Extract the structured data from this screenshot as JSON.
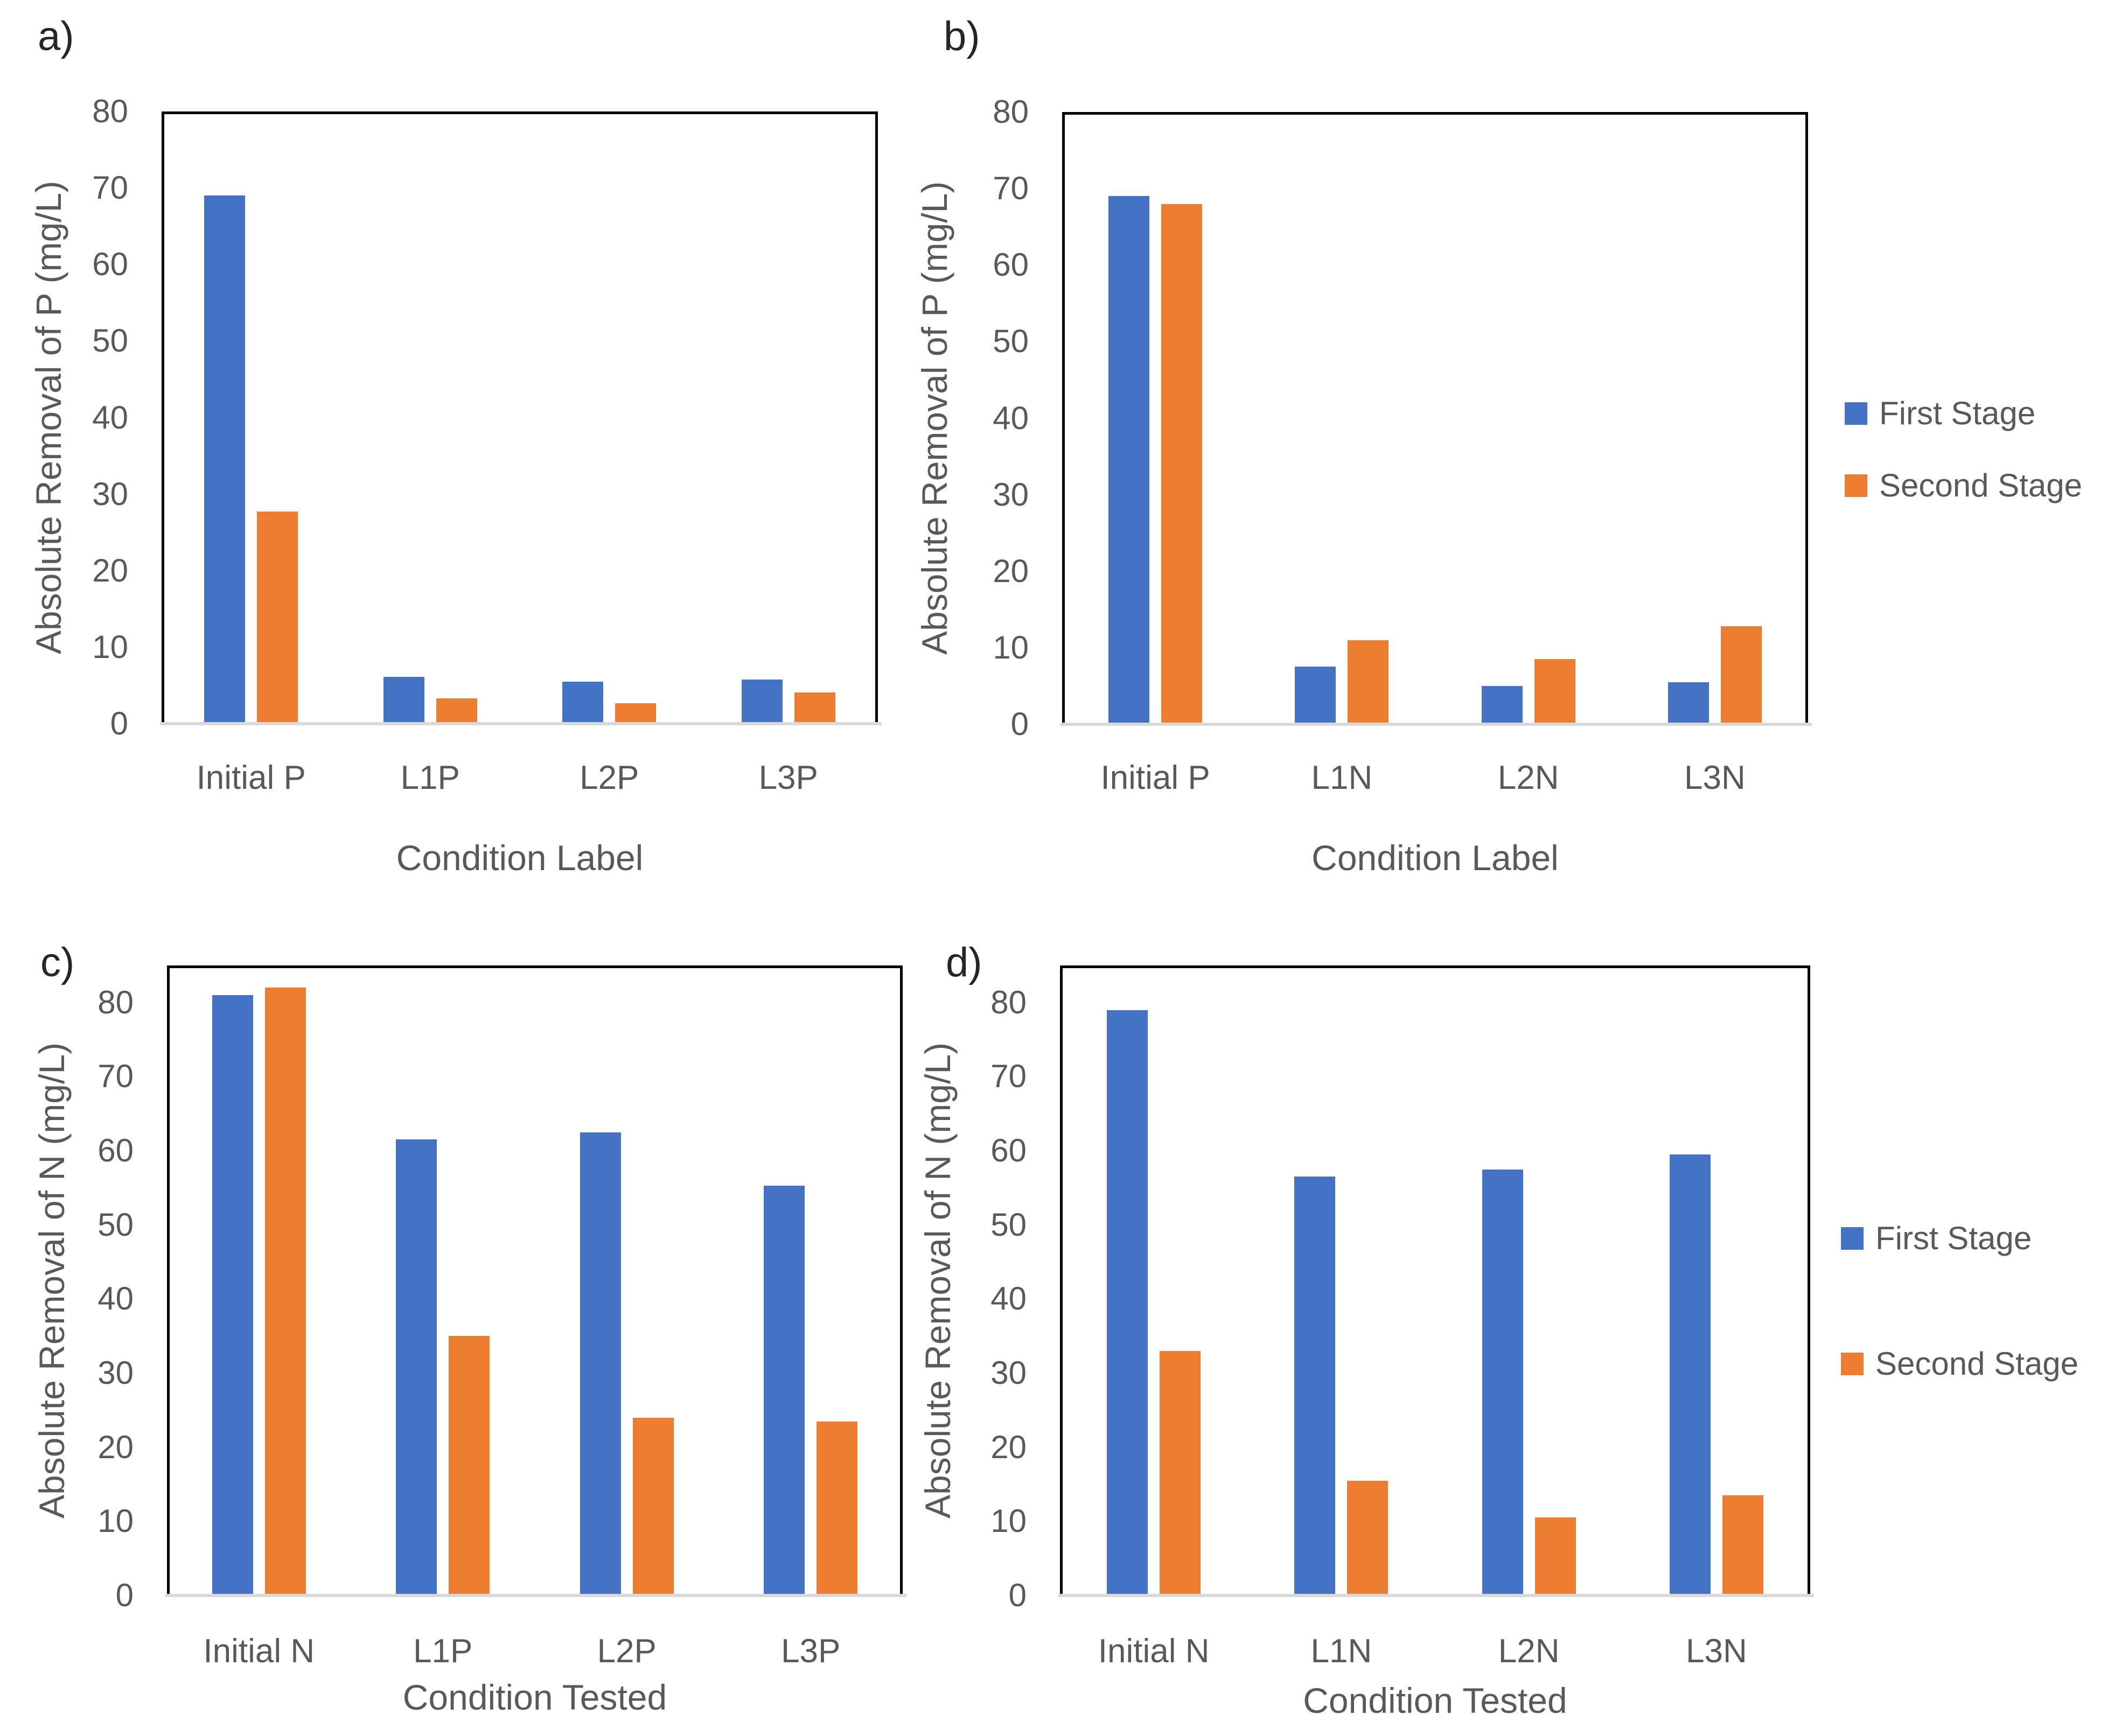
{
  "figure": {
    "background": "#ffffff",
    "text_color": "#595959",
    "frame_color": "#000000",
    "axis_line_color": "#d9d9d9",
    "legend": {
      "position": "right",
      "items": [
        {
          "label": "First Stage",
          "color": "#4472C4"
        },
        {
          "label": "Second Stage",
          "color": "#ED7D31"
        }
      ]
    }
  },
  "chart_data": [
    {
      "type": "bar",
      "panel_label": "a)",
      "title": "",
      "xlabel": "Condition Label",
      "ylabel": "Absolute Removal of P (mg/L)",
      "categories": [
        "Initial P",
        "L1P",
        "L2P",
        "L3P"
      ],
      "series": [
        {
          "name": "First Stage",
          "color": "#4472C4",
          "values": [
            69,
            6.1,
            5.5,
            5.8
          ]
        },
        {
          "name": "Second Stage",
          "color": "#ED7D31",
          "values": [
            27.7,
            3.3,
            2.7,
            4.1
          ]
        }
      ],
      "ylim": [
        0,
        80
      ],
      "yticks": [
        0,
        10,
        20,
        30,
        40,
        50,
        60,
        70,
        80
      ],
      "grid": false,
      "legend_visible": false
    },
    {
      "type": "bar",
      "panel_label": "b)",
      "title": "",
      "xlabel": "Condition Label",
      "ylabel": "Absolute Removal of P (mg/L)",
      "categories": [
        "Initial P",
        "L1N",
        "L2N",
        "L3N"
      ],
      "series": [
        {
          "name": "First Stage",
          "color": "#4472C4",
          "values": [
            69,
            7.5,
            5.0,
            5.5
          ]
        },
        {
          "name": "Second Stage",
          "color": "#ED7D31",
          "values": [
            68,
            11,
            8.5,
            12.8
          ]
        }
      ],
      "ylim": [
        0,
        80
      ],
      "yticks": [
        0,
        10,
        20,
        30,
        40,
        50,
        60,
        70,
        80
      ],
      "grid": false,
      "legend_visible": true
    },
    {
      "type": "bar",
      "panel_label": "c)",
      "title": "",
      "xlabel": "Condition Tested",
      "ylabel": "Absolute Removal of N (mg/L)",
      "categories": [
        "Initial N",
        "L1P",
        "L2P",
        "L3P"
      ],
      "series": [
        {
          "name": "First Stage",
          "color": "#4472C4",
          "values": [
            81,
            61.5,
            62.5,
            55.3
          ]
        },
        {
          "name": "Second Stage",
          "color": "#ED7D31",
          "values": [
            82,
            35,
            24,
            23.5
          ]
        }
      ],
      "ylim": [
        0,
        85
      ],
      "yticks": [
        0,
        10,
        20,
        30,
        40,
        50,
        60,
        70,
        80
      ],
      "grid": false,
      "legend_visible": false
    },
    {
      "type": "bar",
      "panel_label": "d)",
      "title": "",
      "xlabel": "Condition Tested",
      "ylabel": "Absolute Removal of N (mg/L)",
      "categories": [
        "Initial N",
        "L1N",
        "L2N",
        "L3N"
      ],
      "series": [
        {
          "name": "First Stage",
          "color": "#4472C4",
          "values": [
            79,
            56.5,
            57.5,
            59.5
          ]
        },
        {
          "name": "Second Stage",
          "color": "#ED7D31",
          "values": [
            33,
            15.5,
            10.5,
            13.5
          ]
        }
      ],
      "ylim": [
        0,
        85
      ],
      "yticks": [
        0,
        10,
        20,
        30,
        40,
        50,
        60,
        70,
        80
      ],
      "grid": false,
      "legend_visible": true
    }
  ]
}
